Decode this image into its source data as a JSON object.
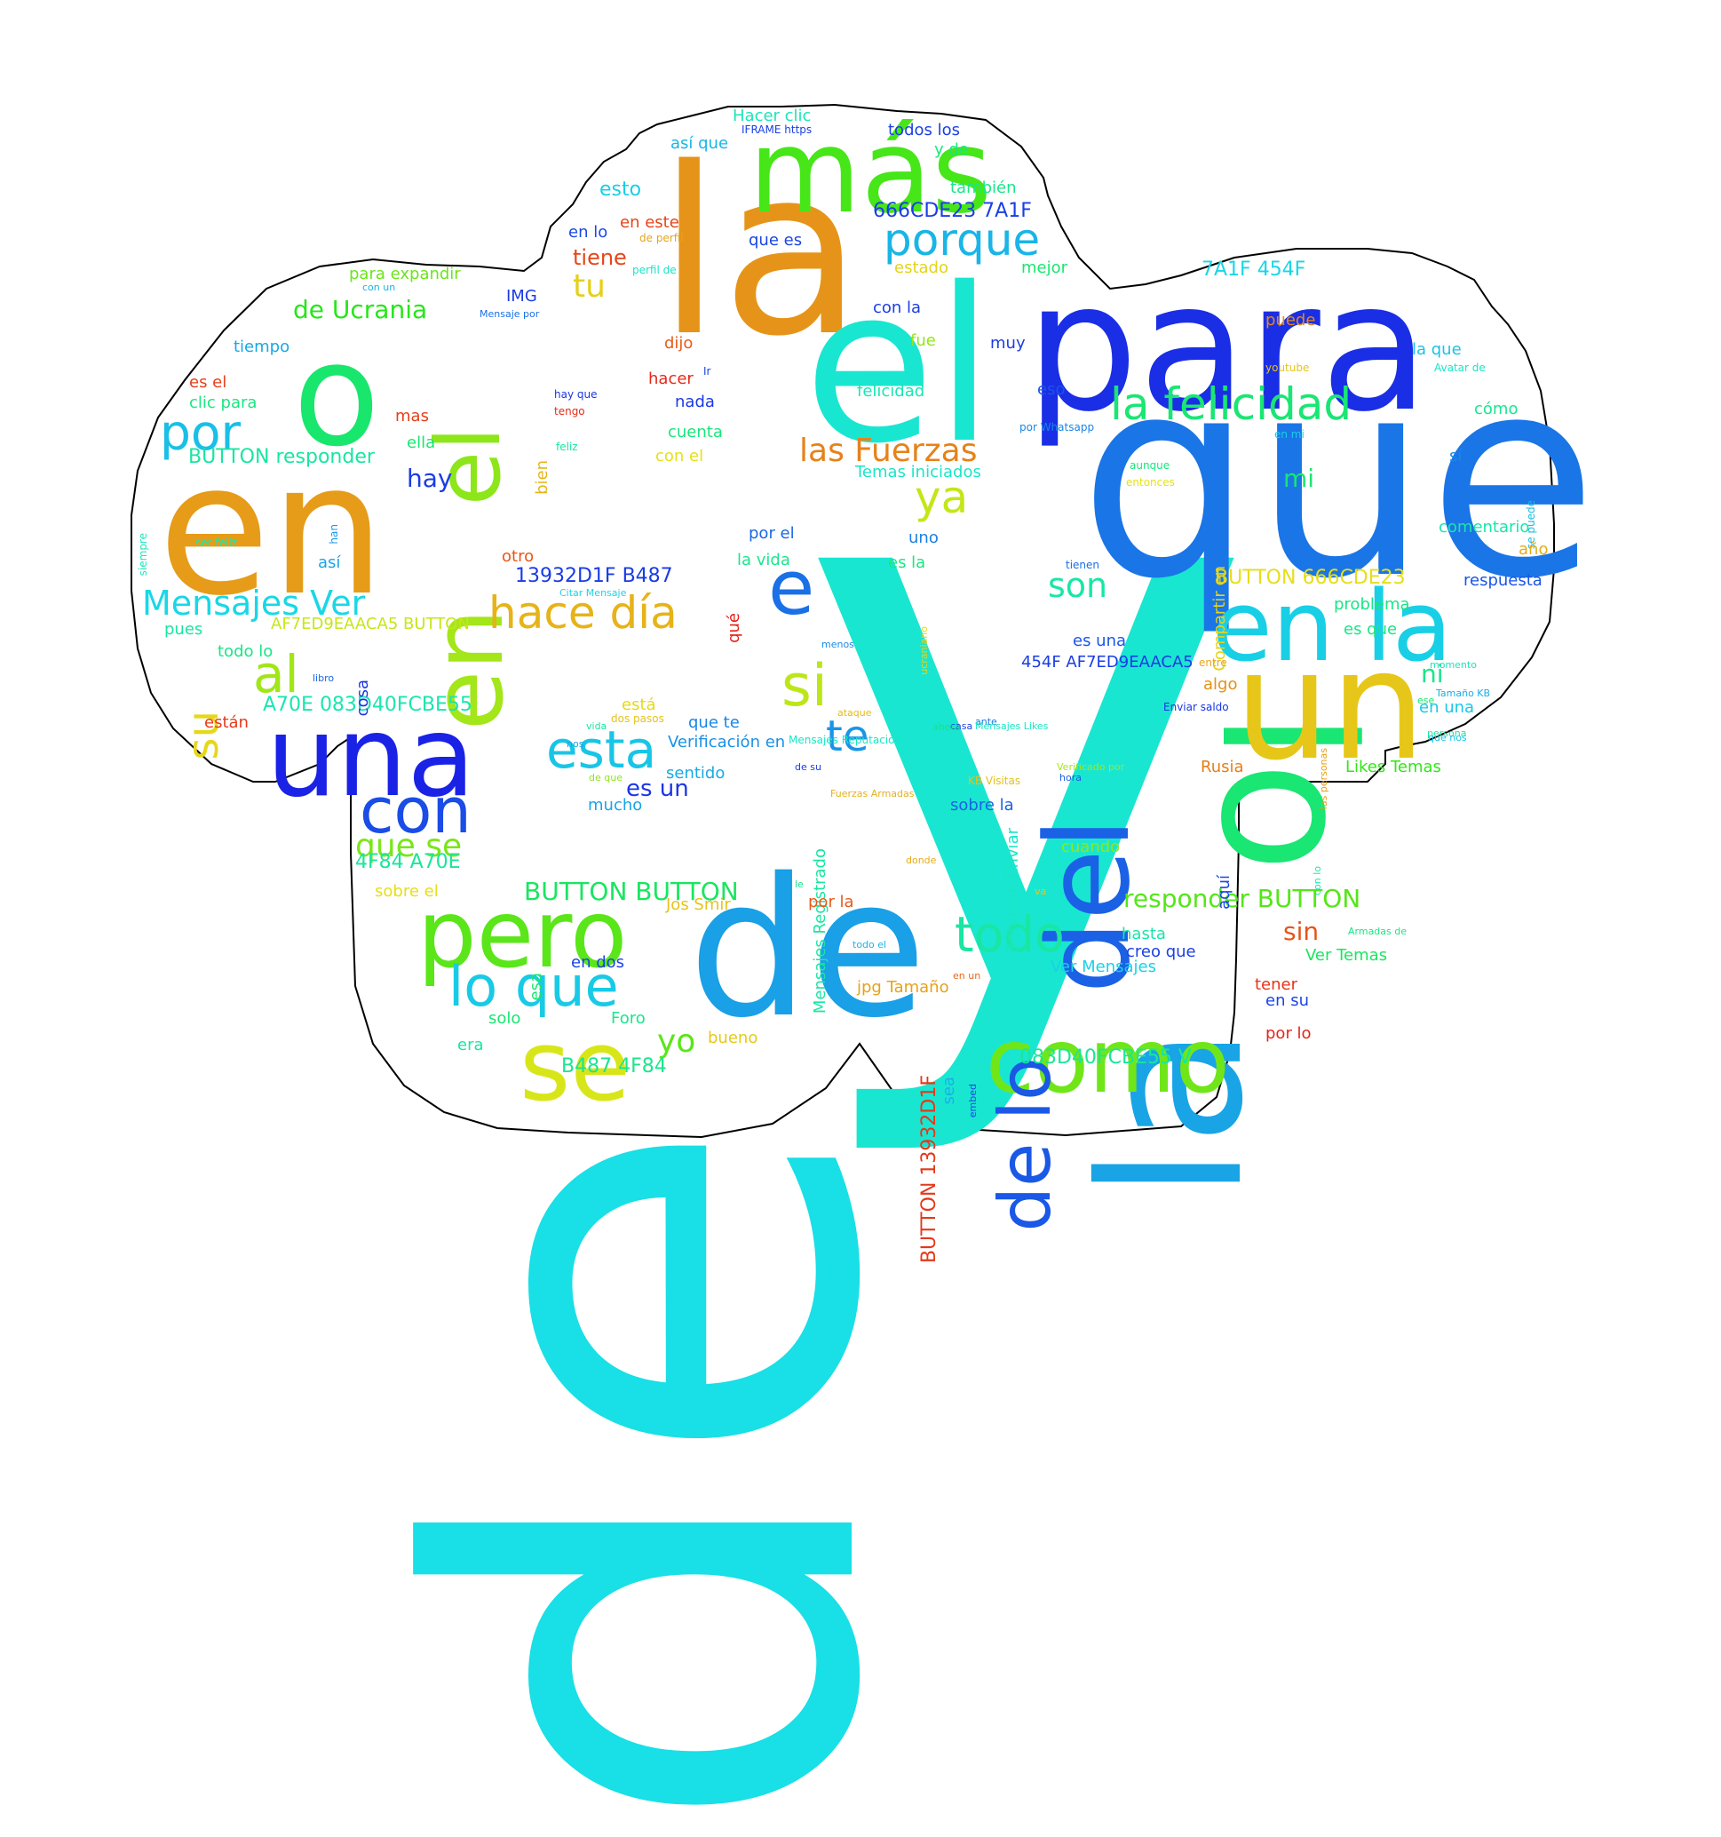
{
  "words": [
    {
      "t": "y",
      "c": "#19e6d0"
    },
    {
      "t": "de",
      "c": "#19dfe6"
    },
    {
      "t": "que",
      "c": "#1a75e6"
    },
    {
      "t": "la",
      "c": "#e69419"
    },
    {
      "t": "el",
      "c": "#19e6d0"
    },
    {
      "t": "para",
      "c": "#1a2ee6"
    },
    {
      "t": "en",
      "c": "#e69c19"
    },
    {
      "t": "lo",
      "c": "#19e673"
    },
    {
      "t": "la",
      "c": "#19a4e6"
    },
    {
      "t": "de",
      "c": "#19a0e6"
    },
    {
      "t": "un",
      "c": "#e6c719"
    },
    {
      "t": "o",
      "c": "#19e66c"
    },
    {
      "t": "más",
      "c": "#46e619"
    },
    {
      "t": "una",
      "c": "#1a22e6"
    },
    {
      "t": "en la",
      "c": "#19cfe6"
    },
    {
      "t": "del",
      "c": "#1a61e6"
    },
    {
      "t": "pero",
      "c": "#5ae619"
    },
    {
      "t": "como",
      "c": "#70e619"
    },
    {
      "t": "se",
      "c": "#d8e619"
    },
    {
      "t": "en",
      "c": "#a3e619"
    },
    {
      "t": "el",
      "c": "#8ce619"
    },
    {
      "t": "de lo",
      "c": "#1a58e6"
    },
    {
      "t": "e",
      "c": "#1a70e6"
    },
    {
      "t": "la felicidad",
      "c": "#19e673"
    },
    {
      "t": "porque",
      "c": "#19b5e6"
    },
    {
      "t": "hace día",
      "c": "#e6b319"
    },
    {
      "t": "lo que",
      "c": "#19cae6"
    },
    {
      "t": "con",
      "c": "#1a4ce6"
    },
    {
      "t": "todo",
      "c": "#19e6a2"
    },
    {
      "t": "esta",
      "c": "#19c5e6"
    },
    {
      "t": "si",
      "c": "#bde619"
    },
    {
      "t": "al",
      "c": "#a0e619"
    },
    {
      "t": "por",
      "c": "#19bfe6"
    },
    {
      "t": "su",
      "c": "#e6d719"
    },
    {
      "t": "las Fuerzas",
      "c": "#e68219"
    },
    {
      "t": "ya",
      "c": "#c3e619"
    },
    {
      "t": "te",
      "c": "#1995e6"
    },
    {
      "t": "Mensajes Ver",
      "c": "#19d7e6"
    },
    {
      "t": "que se",
      "c": "#7ae619"
    },
    {
      "t": "son",
      "c": "#19e6a6"
    },
    {
      "t": "yo",
      "c": "#5ae619"
    },
    {
      "t": "tu",
      "c": "#e6d019"
    },
    {
      "t": "de Ucrania",
      "c": "#26e619"
    },
    {
      "t": "tiene",
      "c": "#e64619"
    },
    {
      "t": "esto",
      "c": "#19cee6"
    },
    {
      "t": "hay",
      "c": "#1a3ce6"
    },
    {
      "t": "responder BUTTON",
      "c": "#54e619"
    },
    {
      "t": "BUTTON BUTTON",
      "c": "#19e660"
    },
    {
      "t": "es un",
      "c": "#1a35e6"
    },
    {
      "t": "666CDE23 7A1F",
      "c": "#1a3ee6"
    },
    {
      "t": "13932D1F B487",
      "c": "#1a3be6"
    },
    {
      "t": "7A1F 454F",
      "c": "#19d6e6"
    },
    {
      "t": "A70E 083D40FCBE55",
      "c": "#19e6b0"
    },
    {
      "t": "083D40FCBE55 V",
      "c": "#19e699"
    },
    {
      "t": "BUTTON 666CDE23",
      "c": "#e6de19"
    },
    {
      "t": "BUTTON responder",
      "c": "#19e6a0"
    },
    {
      "t": "4F84 A70E",
      "c": "#19e69a"
    },
    {
      "t": "B487 4F84",
      "c": "#19e68d"
    },
    {
      "t": "454F AF7ED9EAACA5",
      "c": "#1a3ce6"
    },
    {
      "t": "AF7ED9EAACA5 BUTTON",
      "c": "#c6e619"
    },
    {
      "t": "BUTTON 13932D1F",
      "c": "#e63819"
    },
    {
      "t": "sin",
      "c": "#e65419"
    },
    {
      "t": "mi",
      "c": "#19e672"
    },
    {
      "t": "ni",
      "c": "#19e689"
    },
    {
      "t": "Hacer clic",
      "c": "#19e6b6"
    },
    {
      "t": "IFRAME https",
      "c": "#1a40e6"
    },
    {
      "t": "todos los",
      "c": "#1a40e6"
    },
    {
      "t": "así que",
      "c": "#19b5e6"
    },
    {
      "t": "y de",
      "c": "#19e67f"
    },
    {
      "t": "también",
      "c": "#19e68a"
    },
    {
      "t": "en este",
      "c": "#e64419"
    },
    {
      "t": "en lo",
      "c": "#1a49e6"
    },
    {
      "t": "de perfil",
      "c": "#e6a519"
    },
    {
      "t": "que es",
      "c": "#1a46e6"
    },
    {
      "t": "perfil de",
      "c": "#19e6c6"
    },
    {
      "t": "estado",
      "c": "#e6d319"
    },
    {
      "t": "mejor",
      "c": "#19e66f"
    },
    {
      "t": "para expandir",
      "c": "#6be619"
    },
    {
      "t": "con un",
      "c": "#19b2e6"
    },
    {
      "t": "IMG",
      "c": "#1a3ae6"
    },
    {
      "t": "Mensaje por",
      "c": "#1a70e6"
    },
    {
      "t": "con la",
      "c": "#1a3ce6"
    },
    {
      "t": "puede",
      "c": "#e68719"
    },
    {
      "t": "tiempo",
      "c": "#19a8e6"
    },
    {
      "t": "fue",
      "c": "#93e619"
    },
    {
      "t": "muy",
      "c": "#1a3ce6"
    },
    {
      "t": "la que",
      "c": "#19c4e6"
    },
    {
      "t": "youtube",
      "c": "#e6c519"
    },
    {
      "t": "Avatar de",
      "c": "#19e6c6"
    },
    {
      "t": "dijo",
      "c": "#e65c19"
    },
    {
      "t": "Ir",
      "c": "#1a44e6"
    },
    {
      "t": "es el",
      "c": "#e63f19"
    },
    {
      "t": "hacer",
      "c": "#e62919"
    },
    {
      "t": "felicidad",
      "c": "#19e6b3"
    },
    {
      "t": "eso",
      "c": "#1a53e6"
    },
    {
      "t": "clic para",
      "c": "#19e682"
    },
    {
      "t": "hay que",
      "c": "#1a36e6"
    },
    {
      "t": "nada",
      "c": "#1a3ae6"
    },
    {
      "t": "mas",
      "c": "#e63f19"
    },
    {
      "t": "tengo",
      "c": "#e62b19"
    },
    {
      "t": "por Whatsapp",
      "c": "#1a86e6"
    },
    {
      "t": "cómo",
      "c": "#19e690"
    },
    {
      "t": "ella",
      "c": "#19e66f"
    },
    {
      "t": "bien",
      "c": "#e6b419"
    },
    {
      "t": "cuenta",
      "c": "#19e67b"
    },
    {
      "t": "en mi",
      "c": "#19cde6"
    },
    {
      "t": "feliz",
      "c": "#19e6a4"
    },
    {
      "t": "con el",
      "c": "#e6e019"
    },
    {
      "t": "Temas iniciados",
      "c": "#19e6c8"
    },
    {
      "t": "aunque",
      "c": "#19e67d"
    },
    {
      "t": "sí",
      "c": "#1a88e6"
    },
    {
      "t": "se puede",
      "c": "#19bbe6"
    },
    {
      "t": "entonces",
      "c": "#e6e219"
    },
    {
      "t": "Compartir en",
      "c": "#e6d419"
    },
    {
      "t": "comentario",
      "c": "#19e6aa"
    },
    {
      "t": "año",
      "c": "#e6ac19"
    },
    {
      "t": "siempre",
      "c": "#19e6be"
    },
    {
      "t": "han",
      "c": "#1a99e6"
    },
    {
      "t": "ser feliz",
      "c": "#19e6ac"
    },
    {
      "t": "otro",
      "c": "#e65619"
    },
    {
      "t": "por el",
      "c": "#1a69e6"
    },
    {
      "t": "uno",
      "c": "#1a7fe6"
    },
    {
      "t": "la vida",
      "c": "#19e68f"
    },
    {
      "t": "es la",
      "c": "#19e680"
    },
    {
      "t": "tienen",
      "c": "#1a6ee6"
    },
    {
      "t": "respuesta",
      "c": "#1a55e6"
    },
    {
      "t": "así",
      "c": "#19a4e6"
    },
    {
      "t": "Citar Mensaje",
      "c": "#19d4e6"
    },
    {
      "t": "qué",
      "c": "#e62119"
    },
    {
      "t": "ucraniano",
      "c": "#e6d519"
    },
    {
      "t": "problema",
      "c": "#19e684"
    },
    {
      "t": "es que",
      "c": "#19e684"
    },
    {
      "t": "pues",
      "c": "#19e6a0"
    },
    {
      "t": "todo lo",
      "c": "#19e686"
    },
    {
      "t": "menos",
      "c": "#1a8be6"
    },
    {
      "t": "es una",
      "c": "#1a55e6"
    },
    {
      "t": "cosa",
      "c": "#1a35e6"
    },
    {
      "t": "libro",
      "c": "#1a64e6"
    },
    {
      "t": "entre",
      "c": "#e6a719"
    },
    {
      "t": "momento",
      "c": "#19e6ba"
    },
    {
      "t": "algo",
      "c": "#e69019"
    },
    {
      "t": "Tamaño KB",
      "c": "#19ace6"
    },
    {
      "t": "está",
      "c": "#e6d919"
    },
    {
      "t": "están",
      "c": "#e63a19"
    },
    {
      "t": "dos pasos",
      "c": "#e6c319"
    },
    {
      "t": "Enviar saldo",
      "c": "#1a36e6"
    },
    {
      "t": "en una",
      "c": "#19c8e6"
    },
    {
      "t": "que te",
      "c": "#1a86e6"
    },
    {
      "t": "ataque",
      "c": "#e6bb19"
    },
    {
      "t": "las personas",
      "c": "#e6a019"
    },
    {
      "t": "vida",
      "c": "#19e69d"
    },
    {
      "t": "casa",
      "c": "#1a46e6"
    },
    {
      "t": "ante",
      "c": "#1a77e6"
    },
    {
      "t": "persona",
      "c": "#19e6a4"
    },
    {
      "t": "nos",
      "c": "#19a5e6"
    },
    {
      "t": "Mensajes Likes",
      "c": "#19e6c1"
    },
    {
      "t": "ese",
      "c": "#19e66d"
    },
    {
      "t": "ahora",
      "c": "#19e66b"
    },
    {
      "t": "que nos",
      "c": "#19c3e6"
    },
    {
      "t": "Verificación en",
      "c": "#1a90e6"
    },
    {
      "t": "Mensajes Reputación",
      "c": "#19e6c4"
    },
    {
      "t": "Betacoin Enviar",
      "c": "#19e6c4"
    },
    {
      "t": "Rusia",
      "c": "#e67e19"
    },
    {
      "t": "Likes Temas",
      "c": "#32e619"
    },
    {
      "t": "sentido",
      "c": "#19a9e6"
    },
    {
      "t": "de su",
      "c": "#1a3be6"
    },
    {
      "t": "Verificado por",
      "c": "#a3e619"
    },
    {
      "t": "de que",
      "c": "#8fe619"
    },
    {
      "t": "hora",
      "c": "#1a5ee6"
    },
    {
      "t": "mucho",
      "c": "#19a3e6"
    },
    {
      "t": "KB Visitas",
      "c": "#e6c019"
    },
    {
      "t": "Fuerzas Armadas",
      "c": "#e6b119"
    },
    {
      "t": "Mensajes Registrado",
      "c": "#19e6a3"
    },
    {
      "t": "aquí",
      "c": "#1a45e6"
    },
    {
      "t": "sobre la",
      "c": "#1a62e6"
    },
    {
      "t": "con lo",
      "c": "#19e6aa"
    },
    {
      "t": "cuando",
      "c": "#91e619"
    },
    {
      "t": "donde",
      "c": "#e6ac19"
    },
    {
      "t": "sobre el",
      "c": "#e6e019"
    },
    {
      "t": "le",
      "c": "#19e68c"
    },
    {
      "t": "Jos Smir",
      "c": "#e6c319"
    },
    {
      "t": "por la",
      "c": "#e65919"
    },
    {
      "t": "va",
      "c": "#e6c819"
    },
    {
      "t": "esa",
      "c": "#19e672"
    },
    {
      "t": "hasta",
      "c": "#19e6a8"
    },
    {
      "t": "Armadas de",
      "c": "#19e684"
    },
    {
      "t": "en dos",
      "c": "#1a42e6"
    },
    {
      "t": "creo que",
      "c": "#1a3fe6"
    },
    {
      "t": "Ver Temas",
      "c": "#19e660"
    },
    {
      "t": "todo el",
      "c": "#19b6e6"
    },
    {
      "t": "Ver Mensajes",
      "c": "#19d1e6"
    },
    {
      "t": "en un",
      "c": "#e66719"
    },
    {
      "t": "tener",
      "c": "#e63419"
    },
    {
      "t": "jpg Tamaño",
      "c": "#e6a319"
    },
    {
      "t": "en su",
      "c": "#1a45e6"
    },
    {
      "t": "solo",
      "c": "#19e670"
    },
    {
      "t": "Foro",
      "c": "#19e68e"
    },
    {
      "t": "bueno",
      "c": "#e6c819"
    },
    {
      "t": "era",
      "c": "#19e6a5"
    },
    {
      "t": "sea",
      "c": "#19b0e6"
    },
    {
      "t": "embed",
      "c": "#1a46e6"
    },
    {
      "t": "por lo",
      "c": "#e62519"
    }
  ]
}
